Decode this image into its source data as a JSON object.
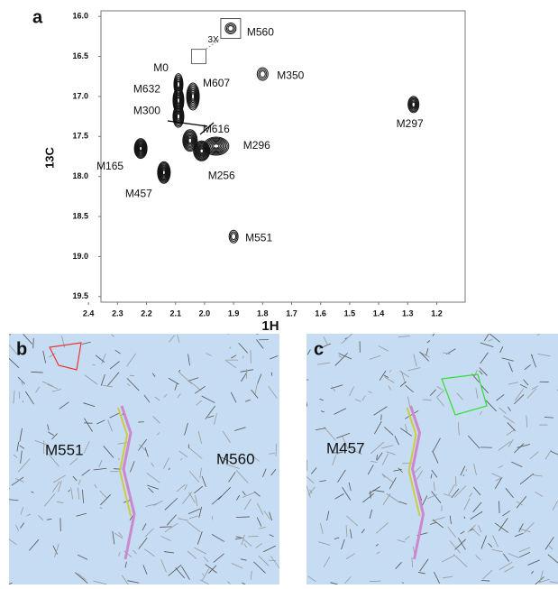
{
  "chart_data": {
    "type": "scatter",
    "panel_label": "a",
    "x_label": "1H",
    "y_label": "13C",
    "xlim": [
      2.357,
      1.102
    ],
    "ylim": [
      19.57,
      15.93
    ],
    "y_inverted": true,
    "x_inverted": true,
    "xticks": [
      2.4,
      2.3,
      2.2,
      2.1,
      {
        "value": 2.0,
        "label": "2.0"
      },
      1.9,
      1.8,
      1.7,
      1.6,
      1.5,
      1.4,
      1.3,
      1.2
    ],
    "yticks": [
      {
        "value": 16.0,
        "label": "16.0"
      },
      16.5,
      {
        "value": 17.0,
        "label": "17.0"
      },
      17.5,
      {
        "value": 18.0,
        "label": "18.0"
      },
      18.5,
      {
        "value": 19.0,
        "label": "19.0"
      },
      19.5
    ],
    "color": "#111111",
    "points": [
      {
        "label": "M560",
        "x": 1.91,
        "y": 16.15
      },
      {
        "label": "M350",
        "x": 1.8,
        "y": 16.72
      },
      {
        "label": "M0",
        "x": 2.09,
        "y": 16.85
      },
      {
        "label": "M632",
        "x": 2.09,
        "y": 17.05
      },
      {
        "label": "M607",
        "x": 2.04,
        "y": 17.0
      },
      {
        "label": "M300",
        "x": 2.09,
        "y": 17.25
      },
      {
        "label": "M616",
        "x": 2.05,
        "y": 17.55
      },
      {
        "label": "M296",
        "x": 1.96,
        "y": 17.62
      },
      {
        "label": "M165",
        "x": 2.22,
        "y": 17.65
      },
      {
        "label": "M256",
        "x": 2.01,
        "y": 17.68
      },
      {
        "label": "M457",
        "x": 2.14,
        "y": 17.95
      },
      {
        "label": "M551",
        "x": 1.9,
        "y": 18.75
      },
      {
        "label": "M297",
        "x": 1.28,
        "y": 17.1
      }
    ],
    "annotation": {
      "label": "3X",
      "x": 2.02,
      "y": 16.5
    }
  },
  "panels": [
    {
      "label": "b",
      "annotations": [
        "M551",
        "M560"
      ]
    },
    {
      "label": "c",
      "annotations": [
        "M457"
      ]
    }
  ]
}
